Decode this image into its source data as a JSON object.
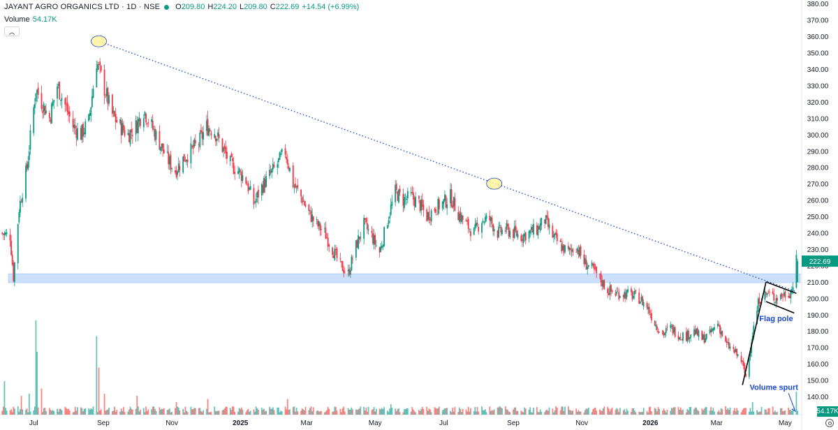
{
  "header": {
    "title": "JAYANT AGRO ORGANICS LTD · 1D · NSE",
    "ohlc": [
      {
        "k": "O",
        "v": "209.80"
      },
      {
        "k": "H",
        "v": "224.20"
      },
      {
        "k": "L",
        "v": "209.80"
      },
      {
        "k": "C",
        "v": "222.69"
      },
      {
        "k": "",
        "v": "+14.54 (+6.99%)"
      }
    ]
  },
  "volume_legend": {
    "label": "Volume",
    "value": "54.17K"
  },
  "collapse_icon": "chevron-up-icon",
  "settings_icon": "gear-icon",
  "chart_data": {
    "type": "candlestick",
    "ylim": [
      132,
      385
    ],
    "y_ticks": [
      "140.00",
      "150.00",
      "160.00",
      "170.00",
      "180.00",
      "190.00",
      "200.00",
      "210.00",
      "220.00",
      "230.00",
      "240.00",
      "250.00",
      "260.00",
      "270.00",
      "280.00",
      "290.00",
      "300.00",
      "310.00",
      "320.00",
      "330.00",
      "340.00",
      "350.00",
      "360.00",
      "370.00",
      "380.00"
    ],
    "x_ticks": [
      {
        "label": "Jul",
        "date": "2024-07-01"
      },
      {
        "label": "Sep",
        "date": "2024-09-01"
      },
      {
        "label": "Nov",
        "date": "2024-11-01"
      },
      {
        "label": "2025",
        "date": "2025-01-01"
      },
      {
        "label": "Mar",
        "date": "2025-03-01"
      },
      {
        "label": "May",
        "date": "2025-05-01"
      },
      {
        "label": "Jul",
        "date": "2025-07-01"
      },
      {
        "label": "Sep",
        "date": "2025-09-01"
      },
      {
        "label": "Nov",
        "date": "2025-11-01"
      },
      {
        "label": "2026",
        "date": "2026-01-01"
      },
      {
        "label": "Mar",
        "date": "2026-03-01"
      },
      {
        "label": "May",
        "date": "2026-05-01"
      }
    ],
    "x_range": [
      "2024-06-01",
      "2026-05-12"
    ],
    "price_path": [
      [
        "2024-06-01",
        240
      ],
      [
        "2024-06-10",
        238
      ],
      [
        "2024-06-13",
        213
      ],
      [
        "2024-06-18",
        255
      ],
      [
        "2024-06-25",
        280
      ],
      [
        "2024-07-03",
        328
      ],
      [
        "2024-07-08",
        320
      ],
      [
        "2024-07-15",
        310
      ],
      [
        "2024-07-22",
        330
      ],
      [
        "2024-07-29",
        318
      ],
      [
        "2024-08-05",
        305
      ],
      [
        "2024-08-12",
        300
      ],
      [
        "2024-08-19",
        308
      ],
      [
        "2024-08-26",
        345
      ],
      [
        "2024-09-02",
        328
      ],
      [
        "2024-09-09",
        312
      ],
      [
        "2024-09-16",
        305
      ],
      [
        "2024-09-23",
        300
      ],
      [
        "2024-09-30",
        305
      ],
      [
        "2024-10-07",
        315
      ],
      [
        "2024-10-14",
        305
      ],
      [
        "2024-10-21",
        295
      ],
      [
        "2024-10-28",
        285
      ],
      [
        "2024-11-04",
        278
      ],
      [
        "2024-11-11",
        285
      ],
      [
        "2024-11-18",
        290
      ],
      [
        "2024-11-25",
        295
      ],
      [
        "2024-12-02",
        305
      ],
      [
        "2024-12-09",
        302
      ],
      [
        "2024-12-16",
        292
      ],
      [
        "2024-12-23",
        282
      ],
      [
        "2024-12-30",
        278
      ],
      [
        "2025-01-06",
        272
      ],
      [
        "2025-01-13",
        258
      ],
      [
        "2025-01-20",
        268
      ],
      [
        "2025-01-27",
        275
      ],
      [
        "2025-02-03",
        282
      ],
      [
        "2025-02-10",
        290
      ],
      [
        "2025-02-17",
        270
      ],
      [
        "2025-02-24",
        262
      ],
      [
        "2025-03-03",
        252
      ],
      [
        "2025-03-10",
        245
      ],
      [
        "2025-03-17",
        240
      ],
      [
        "2025-03-24",
        230
      ],
      [
        "2025-03-31",
        220
      ],
      [
        "2025-04-07",
        215
      ],
      [
        "2025-04-14",
        232
      ],
      [
        "2025-04-21",
        245
      ],
      [
        "2025-04-28",
        238
      ],
      [
        "2025-05-05",
        228
      ],
      [
        "2025-05-12",
        248
      ],
      [
        "2025-05-19",
        265
      ],
      [
        "2025-05-26",
        260
      ],
      [
        "2025-06-02",
        262
      ],
      [
        "2025-06-09",
        258
      ],
      [
        "2025-06-16",
        250
      ],
      [
        "2025-06-23",
        255
      ],
      [
        "2025-06-30",
        258
      ],
      [
        "2025-07-07",
        262
      ],
      [
        "2025-07-14",
        252
      ],
      [
        "2025-07-21",
        245
      ],
      [
        "2025-07-28",
        240
      ],
      [
        "2025-08-04",
        248
      ],
      [
        "2025-08-11",
        248
      ],
      [
        "2025-08-18",
        240
      ],
      [
        "2025-08-25",
        242
      ],
      [
        "2025-09-01",
        240
      ],
      [
        "2025-09-08",
        238
      ],
      [
        "2025-09-15",
        240
      ],
      [
        "2025-09-22",
        242
      ],
      [
        "2025-09-29",
        248
      ],
      [
        "2025-10-06",
        238
      ],
      [
        "2025-10-13",
        232
      ],
      [
        "2025-10-20",
        228
      ],
      [
        "2025-10-27",
        232
      ],
      [
        "2025-11-03",
        222
      ],
      [
        "2025-11-10",
        218
      ],
      [
        "2025-11-17",
        212
      ],
      [
        "2025-11-24",
        205
      ],
      [
        "2025-12-01",
        203
      ],
      [
        "2025-12-08",
        203
      ],
      [
        "2025-12-15",
        202
      ],
      [
        "2025-12-22",
        200
      ],
      [
        "2025-12-29",
        195
      ],
      [
        "2026-01-05",
        185
      ],
      [
        "2026-01-12",
        178
      ],
      [
        "2026-01-19",
        182
      ],
      [
        "2026-01-26",
        178
      ],
      [
        "2026-02-02",
        177
      ],
      [
        "2026-02-09",
        180
      ],
      [
        "2026-02-16",
        175
      ],
      [
        "2026-02-23",
        178
      ],
      [
        "2026-03-02",
        185
      ],
      [
        "2026-03-09",
        172
      ],
      [
        "2026-03-16",
        168
      ],
      [
        "2026-03-23",
        162
      ],
      [
        "2026-03-27",
        152
      ],
      [
        "2026-04-01",
        175
      ],
      [
        "2026-04-08",
        200
      ],
      [
        "2026-04-15",
        203
      ],
      [
        "2026-04-22",
        200
      ],
      [
        "2026-04-29",
        202
      ],
      [
        "2026-05-06",
        204
      ],
      [
        "2026-05-08",
        208
      ],
      [
        "2026-05-11",
        222.69
      ]
    ],
    "volume_scale_max": 100,
    "volume_spikes": [
      [
        "2024-06-05",
        32
      ],
      [
        "2024-06-20",
        18
      ],
      [
        "2024-06-27",
        20
      ],
      [
        "2024-07-03",
        90
      ],
      [
        "2024-07-04",
        60
      ],
      [
        "2024-07-08",
        25
      ],
      [
        "2024-08-26",
        75
      ],
      [
        "2024-08-28",
        45
      ],
      [
        "2024-09-02",
        20
      ],
      [
        "2024-10-01",
        18
      ],
      [
        "2024-11-05",
        12
      ],
      [
        "2024-12-03",
        15
      ],
      [
        "2025-02-12",
        15
      ],
      [
        "2025-05-15",
        10
      ],
      [
        "2025-08-20",
        8
      ],
      [
        "2026-04-02",
        12
      ],
      [
        "2026-05-11",
        22
      ]
    ],
    "support_zone": [
      209.5,
      215
    ],
    "trendline": {
      "start": [
        "2024-08-28",
        357
      ],
      "end": [
        "2026-05-11",
        204
      ]
    },
    "highlight_points": [
      [
        "2024-08-28",
        357
      ],
      [
        "2025-08-15",
        270
      ]
    ],
    "flag_pole": [
      [
        "2026-03-24",
        147
      ],
      [
        "2026-04-14",
        210
      ]
    ],
    "flag_lines": [
      [
        [
          "2026-04-14",
          210
        ],
        [
          "2026-05-11",
          203
        ]
      ],
      [
        [
          "2026-04-14",
          198
        ],
        [
          "2026-05-09",
          191
        ]
      ]
    ],
    "annotations": [
      {
        "text": "Flag pole",
        "date": "2026-04-23",
        "price": 186
      },
      {
        "text": "Volume spurt",
        "date": "2026-04-21",
        "price": 144
      }
    ],
    "volume_arrow": [
      [
        "2026-05-04",
        142
      ],
      [
        "2026-05-10",
        137
      ]
    ]
  },
  "price_axis_last_volume": "54.17K"
}
